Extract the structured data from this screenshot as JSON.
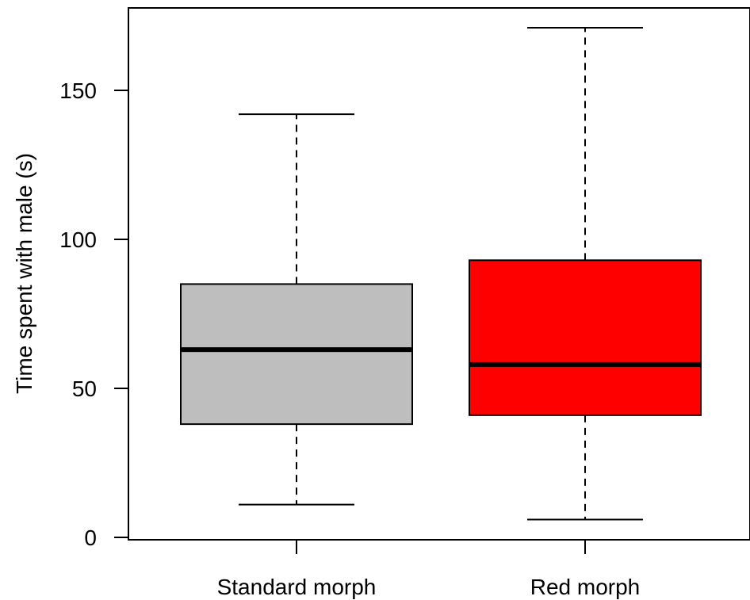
{
  "chart_data": {
    "type": "boxplot",
    "ylabel": "Time spent with male (s)",
    "xlabel": "",
    "ylim": [
      0,
      175
    ],
    "yticks": [
      0,
      50,
      100,
      150
    ],
    "grid": false,
    "categories": [
      "Standard morph",
      "Red morph"
    ],
    "boxes": [
      {
        "label": "Standard morph",
        "min": 11,
        "q1": 38,
        "median": 63,
        "q3": 85,
        "max": 142,
        "color": "#bebebe"
      },
      {
        "label": "Red morph",
        "min": 6,
        "q1": 41,
        "median": 58,
        "q3": 93,
        "max": 171,
        "color": "#ff0000"
      }
    ]
  }
}
